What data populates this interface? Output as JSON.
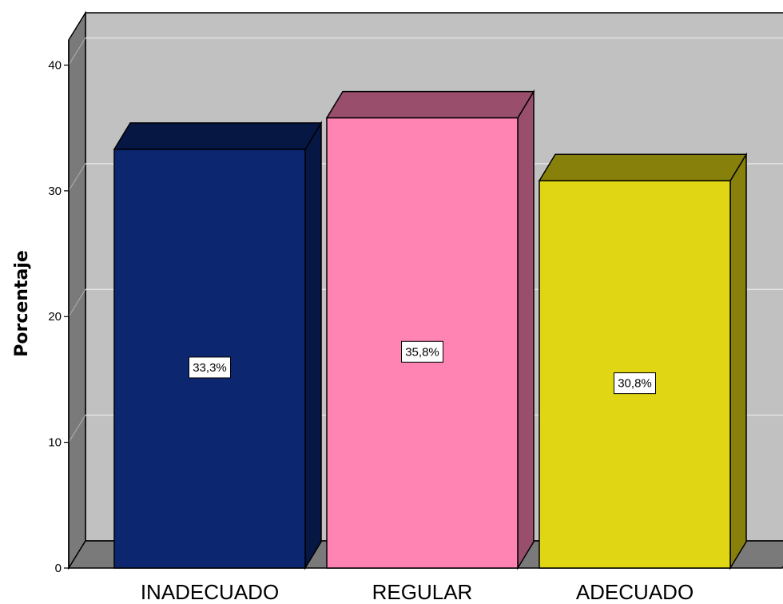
{
  "chart_data": {
    "type": "bar",
    "categories": [
      "INADECUADO",
      "REGULAR",
      "ADECUADO"
    ],
    "values": [
      33.3,
      35.8,
      30.8
    ],
    "data_labels": [
      "33,3%",
      "35,8%",
      "30,8%"
    ],
    "colors": [
      "#0c2670",
      "#ff84b4",
      "#e1d613"
    ],
    "title": "",
    "xlabel": "",
    "ylabel": "Porcentaje",
    "ylim": [
      0,
      40
    ],
    "yticks": [
      0,
      10,
      20,
      30,
      40
    ],
    "ytick_labels": [
      "0",
      "10",
      "20",
      "30",
      "40"
    ],
    "grid": true,
    "style": "3d-bars"
  }
}
